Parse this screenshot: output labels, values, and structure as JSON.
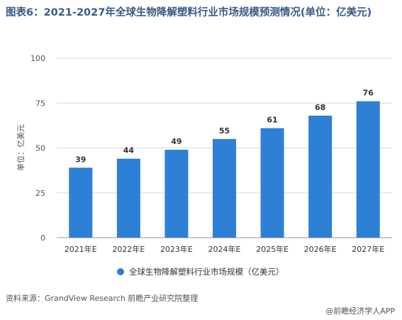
{
  "title": "图表6：2021-2027年全球生物降解塑料行业市场规模预测情况(单位：亿美元)",
  "source": "资料来源：GrandView Research 前瞻产业研究院整理",
  "brand": "@前瞻经济学人APP",
  "chart_data": {
    "type": "bar",
    "categories": [
      "2021年E",
      "2022年E",
      "2023年E",
      "2024年E",
      "2025年E",
      "2026年E",
      "2027年E"
    ],
    "series": [
      {
        "name": "全球生物降解塑料行业市场规模（亿美元）",
        "values": [
          39,
          44,
          49,
          55,
          61,
          68,
          76
        ],
        "color": "#2e7fd6"
      }
    ],
    "ylabel": "单位：亿美元",
    "ylim": [
      0,
      100
    ],
    "yticks": [
      0,
      25,
      50,
      75,
      100
    ],
    "grid": true,
    "legend": "bottom"
  }
}
